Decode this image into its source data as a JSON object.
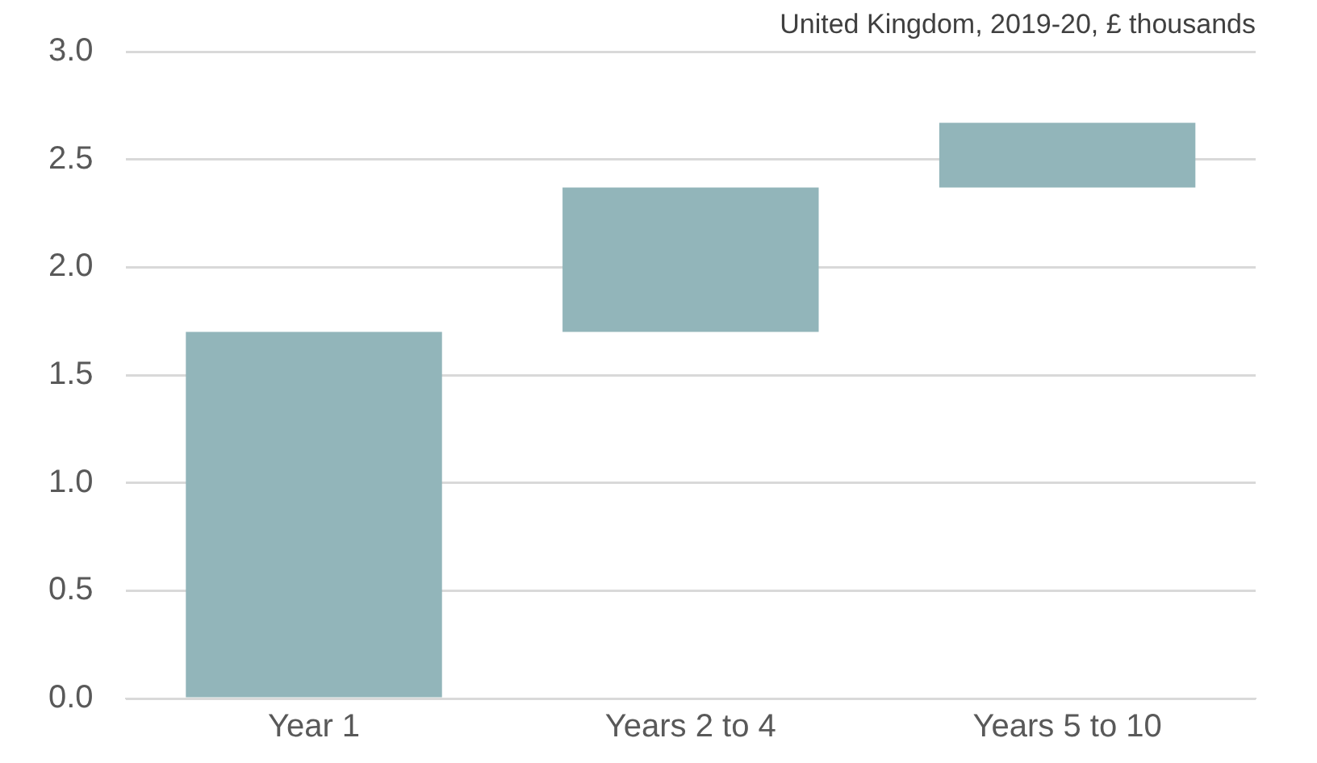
{
  "chart_data": {
    "type": "bar",
    "subtitle": "United Kingdom, 2019-20, £ thousands",
    "categories": [
      "Year 1",
      "Years 2 to 4",
      "Years 5 to 10"
    ],
    "values": [
      1.7,
      0.67,
      0.3
    ],
    "base": [
      0,
      1.7,
      2.37
    ],
    "color": "#92b5ba",
    "ylim": [
      0,
      3
    ],
    "yticks": [
      {
        "value": 0,
        "label": "0.0"
      },
      {
        "value": 0.5,
        "label": "0.5"
      },
      {
        "value": 1,
        "label": "1.0"
      },
      {
        "value": 1.5,
        "label": "1.5"
      },
      {
        "value": 2,
        "label": "2.0"
      },
      {
        "value": 2.5,
        "label": "2.5"
      },
      {
        "value": 3,
        "label": "3.0"
      }
    ],
    "grid": "y",
    "legend": false
  }
}
